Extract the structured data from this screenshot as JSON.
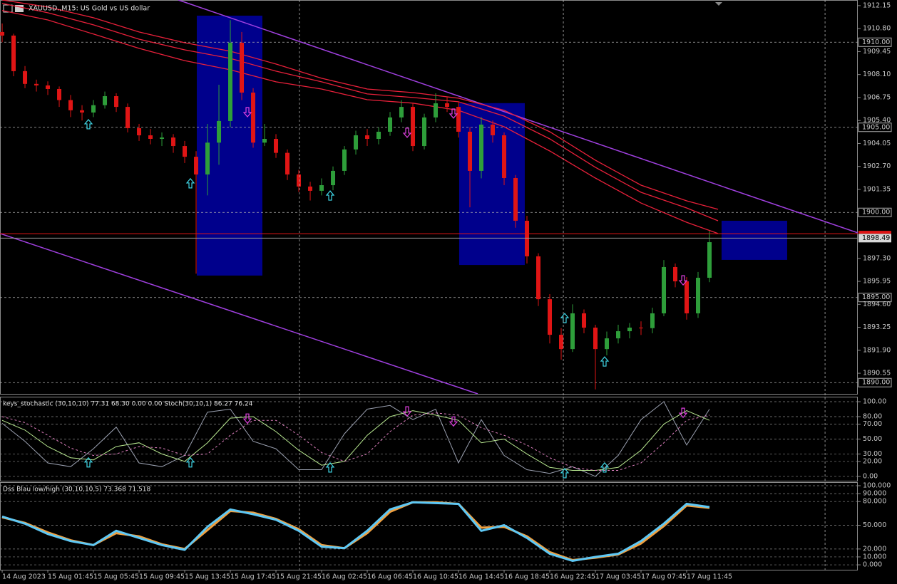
{
  "chart_data": [
    {
      "type": "candlestick",
      "title": "XAUUSD.,M15:  US Gold vs US dollar",
      "up_color": "#2e9e3a",
      "down_color": "#e01515",
      "x": [
        0,
        1,
        2,
        3,
        4,
        5,
        6,
        7,
        8,
        9,
        10,
        11,
        12,
        13,
        14,
        15,
        16,
        17,
        18,
        19,
        20,
        21,
        22,
        23,
        24,
        25,
        26,
        27,
        28,
        29,
        30,
        31,
        32,
        33,
        34,
        35,
        36,
        37,
        38,
        39,
        40,
        41,
        42,
        43,
        44,
        45,
        46,
        47,
        48,
        49,
        50,
        51,
        52,
        53,
        54,
        55,
        56,
        57,
        58,
        59,
        60,
        61,
        62
      ],
      "open": [
        1910.6,
        1910.39,
        1908.3,
        1907.55,
        1907.46,
        1907.25,
        1906.6,
        1906.0,
        1905.87,
        1906.3,
        1906.83,
        1906.2,
        1904.95,
        1904.53,
        1904.32,
        1904.4,
        1903.9,
        1903.27,
        1902.23,
        1904.1,
        1905.37,
        1909.97,
        1907.04,
        1904.1,
        1904.32,
        1903.5,
        1902.23,
        1901.52,
        1901.27,
        1901.6,
        1902.44,
        1903.7,
        1904.53,
        1904.32,
        1904.74,
        1905.58,
        1906.2,
        1903.9,
        1905.58,
        1906.41,
        1906.2,
        1904.74,
        1902.44,
        1905.16,
        1904.53,
        1902.02,
        1899.51,
        1897.42,
        1894.9,
        1892.81,
        1891.97,
        1894.07,
        1893.23,
        1891.97,
        1892.6,
        1893.02,
        1893.23,
        1893.2,
        1894.07,
        1896.79,
        1895.95,
        1894.07,
        1896.16
      ],
      "high": [
        1911.1,
        1910.5,
        1908.6,
        1907.8,
        1907.7,
        1907.4,
        1906.9,
        1906.3,
        1906.6,
        1907.1,
        1907.0,
        1906.4,
        1905.2,
        1904.9,
        1904.7,
        1904.6,
        1904.2,
        1903.6,
        1905.2,
        1907.5,
        1911.3,
        1910.6,
        1907.3,
        1905.2,
        1904.6,
        1903.7,
        1902.5,
        1901.8,
        1902.0,
        1902.7,
        1903.9,
        1904.8,
        1904.9,
        1905.0,
        1905.9,
        1906.6,
        1906.4,
        1905.8,
        1907.0,
        1906.8,
        1906.5,
        1905.0,
        1905.6,
        1905.4,
        1904.7,
        1902.2,
        1899.8,
        1897.6,
        1895.2,
        1893.2,
        1894.6,
        1894.3,
        1893.4,
        1893.0,
        1893.4,
        1893.5,
        1893.6,
        1894.4,
        1897.2,
        1897.0,
        1896.2,
        1896.5,
        1898.9
      ],
      "low": [
        1910.0,
        1908.0,
        1907.3,
        1907.1,
        1906.9,
        1906.2,
        1905.6,
        1905.4,
        1905.6,
        1906.1,
        1905.9,
        1904.7,
        1904.2,
        1904.0,
        1903.9,
        1903.5,
        1902.9,
        1896.4,
        1901.0,
        1902.8,
        1905.0,
        1906.6,
        1903.8,
        1903.9,
        1903.2,
        1901.9,
        1901.2,
        1900.7,
        1901.0,
        1901.3,
        1902.2,
        1903.4,
        1903.9,
        1904.0,
        1904.5,
        1905.3,
        1903.6,
        1903.7,
        1905.3,
        1905.9,
        1904.4,
        1900.3,
        1902.0,
        1904.1,
        1901.6,
        1899.1,
        1897.0,
        1894.5,
        1892.3,
        1891.35,
        1891.8,
        1892.9,
        1889.6,
        1891.6,
        1892.3,
        1892.6,
        1892.8,
        1892.9,
        1893.9,
        1895.6,
        1893.7,
        1893.8,
        1895.9
      ],
      "close": [
        1910.39,
        1908.3,
        1907.55,
        1907.46,
        1907.25,
        1906.6,
        1906.0,
        1905.87,
        1906.3,
        1906.83,
        1906.2,
        1904.95,
        1904.53,
        1904.32,
        1904.4,
        1903.9,
        1903.27,
        1902.23,
        1904.1,
        1905.37,
        1909.97,
        1907.04,
        1904.1,
        1904.32,
        1903.5,
        1902.23,
        1901.52,
        1901.27,
        1901.6,
        1902.44,
        1903.7,
        1904.53,
        1904.32,
        1904.74,
        1905.58,
        1906.2,
        1903.9,
        1905.58,
        1906.41,
        1906.2,
        1904.74,
        1902.44,
        1905.16,
        1904.53,
        1902.02,
        1899.51,
        1897.42,
        1894.9,
        1892.81,
        1891.97,
        1894.07,
        1893.23,
        1891.97,
        1892.6,
        1893.02,
        1893.23,
        1893.2,
        1894.07,
        1896.79,
        1895.95,
        1894.07,
        1896.16,
        1898.25
      ],
      "xlim": [
        -0.19,
        75
      ],
      "xticks": [
        {
          "value": 0,
          "label": "14 Aug 2023"
        },
        {
          "value": 4,
          "label": "15 Aug 01:45"
        },
        {
          "value": 8,
          "label": "15 Aug 05:45"
        },
        {
          "value": 12,
          "label": "15 Aug 09:45"
        },
        {
          "value": 16,
          "label": "15 Aug 13:45"
        },
        {
          "value": 20,
          "label": "15 Aug 17:45"
        },
        {
          "value": 24,
          "label": "15 Aug 21:45"
        },
        {
          "value": 28,
          "label": "16 Aug 02:45"
        },
        {
          "value": 32,
          "label": "16 Aug 06:45"
        },
        {
          "value": 36,
          "label": "16 Aug 10:45"
        },
        {
          "value": 40,
          "label": "16 Aug 14:45"
        },
        {
          "value": 44,
          "label": "16 Aug 18:45"
        },
        {
          "value": 48,
          "label": "16 Aug 22:45"
        },
        {
          "value": 52,
          "label": "17 Aug 03:45"
        },
        {
          "value": 56,
          "label": "17 Aug 07:45"
        },
        {
          "value": 60,
          "label": "17 Aug 11:45"
        }
      ],
      "xgrid": [
        26.06,
        49.19,
        72.13
      ],
      "ylim": [
        1889.34,
        1912.48
      ],
      "yticks": [
        1912.15,
        {
          "value": 1910.8,
          "label": "1910.80"
        },
        1909.45,
        {
          "value": 1908.1,
          "label": "1908.10"
        },
        1906.75,
        {
          "value": 1905.4,
          "label": "1905.40"
        },
        1904.05,
        {
          "value": 1902.7,
          "label": "1902.70"
        },
        1901.35,
        {
          "value": 1897.3,
          "label": "1897.30"
        },
        1895.95,
        {
          "value": 1894.6,
          "label": "1894.60"
        },
        1893.25,
        {
          "value": 1891.9,
          "label": "1891.90"
        },
        1890.55
      ],
      "levels": [
        {
          "value": 1910,
          "label": "1910.00"
        },
        {
          "value": 1905,
          "label": "1905.00"
        },
        {
          "value": 1900,
          "label": "1900.00"
        },
        {
          "value": 1895,
          "label": "1895.00"
        },
        {
          "value": 1890,
          "label": "1890.00"
        }
      ],
      "bid": {
        "value": 1898.49,
        "label": "1898.49"
      },
      "ask": 1898.75,
      "series": [
        {
          "color": "#e8203a",
          "x": [
            0,
            4,
            8,
            12,
            16,
            20,
            24,
            28,
            32,
            36,
            40,
            44,
            48,
            52,
            56,
            60,
            62.75
          ],
          "values": [
            1912.48,
            1912.07,
            1911.44,
            1910.6,
            1909.97,
            1909.47,
            1908.72,
            1907.88,
            1907.25,
            1907.04,
            1906.71,
            1906.0,
            1904.74,
            1903.07,
            1901.6,
            1900.68,
            1900.18
          ]
        },
        {
          "color": "#e8203a",
          "x": [
            0,
            4,
            8,
            12,
            16,
            20,
            24,
            28,
            32,
            36,
            40,
            44,
            48,
            52,
            56,
            60,
            62.75
          ],
          "values": [
            1912.28,
            1911.73,
            1911.02,
            1910.18,
            1909.55,
            1909.05,
            1908.3,
            1907.67,
            1906.96,
            1906.75,
            1906.5,
            1905.66,
            1904.32,
            1902.65,
            1901.18,
            1900.26,
            1899.51
          ]
        },
        {
          "color": "#e8203a",
          "x": [
            0,
            4,
            8,
            12,
            16,
            20,
            24,
            28,
            32,
            36,
            40,
            44,
            48,
            52,
            56,
            60,
            62.75
          ],
          "values": [
            1911.86,
            1911.31,
            1910.48,
            1909.64,
            1908.92,
            1908.38,
            1907.67,
            1907.25,
            1906.62,
            1906.42,
            1906.0,
            1905.03,
            1903.61,
            1902.02,
            1900.55,
            1899.42,
            1898.76
          ]
        }
      ],
      "trend_color": "#a040e0",
      "trendlines": [
        {
          "x": [
            15.44,
            75
          ],
          "y": [
            1912.48,
            1898.8
          ]
        },
        {
          "x": [
            -0.19,
            41.69
          ],
          "y": [
            1898.76,
            1889.34
          ]
        }
      ],
      "box_color": "#00008c",
      "boxes": [
        {
          "x": [
            17.06,
            22.81
          ],
          "y": [
            1911.56,
            1896.29
          ]
        },
        {
          "x": [
            40.06,
            45.81
          ],
          "y": [
            1906.42,
            1896.91
          ]
        },
        {
          "x": [
            63.06,
            68.81
          ],
          "y": [
            1899.51,
            1897.21
          ]
        }
      ],
      "signals_up": {
        "x": [
          7.56,
          16.5,
          28.75,
          49.31,
          52.81
        ],
        "y": [
          1905.16,
          1901.69,
          1900.97,
          1893.77,
          1891.22
        ]
      },
      "signals_down": {
        "x": [
          21.5,
          35.5,
          39.56,
          59.69
        ],
        "y": [
          1905.91,
          1904.7,
          1905.83,
          1896.03
        ]
      }
    },
    {
      "type": "line",
      "title": "keys_stochastic (30,10,10) 77.31 68.30 0.00 0.00 Stoch(30,10,1) 86.27 76.24",
      "ylim": [
        -5.8,
        106.7
      ],
      "yticks": [
        {
          "value": 100,
          "label": "100.00"
        },
        {
          "value": 80,
          "label": "80.00"
        },
        {
          "value": 70,
          "label": "70.00"
        },
        {
          "value": 50,
          "label": "50.00"
        },
        {
          "value": 30,
          "label": "30.00"
        },
        {
          "value": 20,
          "label": "20.00"
        },
        {
          "value": 0,
          "label": "0.00"
        }
      ],
      "series": [
        {
          "color": "#9aa0b0",
          "dash": false,
          "x": [
            0,
            2,
            4,
            6,
            8,
            10,
            12,
            14,
            16,
            18,
            20,
            22,
            24,
            26,
            28,
            30,
            32,
            34,
            36,
            38,
            40,
            42,
            44,
            46,
            48,
            50,
            52,
            54,
            56,
            58,
            60,
            62
          ],
          "values": [
            71,
            47,
            18,
            13,
            37,
            66,
            18,
            13,
            28,
            86,
            90,
            47,
            37,
            9,
            9,
            57,
            90,
            95,
            76,
            90,
            18,
            76,
            28,
            9,
            4,
            13,
            0,
            28,
            76,
            100,
            42,
            90
          ]
        },
        {
          "color": "#b8e890",
          "dash": false,
          "x": [
            0,
            2,
            4,
            6,
            8,
            10,
            12,
            14,
            16,
            18,
            20,
            22,
            24,
            26,
            28,
            30,
            32,
            34,
            36,
            38,
            40,
            42,
            44,
            46,
            48,
            50,
            52,
            54,
            56,
            58,
            60,
            62
          ],
          "values": [
            75,
            62,
            40,
            25,
            22,
            40,
            45,
            30,
            20,
            45,
            78,
            80,
            60,
            35,
            15,
            20,
            55,
            80,
            88,
            82,
            75,
            45,
            50,
            30,
            12,
            8,
            8,
            12,
            35,
            70,
            88,
            75
          ]
        },
        {
          "color": "#e080c0",
          "dash": true,
          "x": [
            0,
            2,
            4,
            6,
            8,
            10,
            12,
            14,
            16,
            18,
            20,
            22,
            24,
            26,
            28,
            30,
            32,
            34,
            36,
            38,
            40,
            42,
            44,
            46,
            48,
            50,
            52,
            54,
            56,
            58,
            60,
            62
          ],
          "values": [
            80,
            72,
            55,
            38,
            28,
            30,
            40,
            38,
            28,
            30,
            55,
            75,
            75,
            55,
            32,
            20,
            30,
            60,
            82,
            85,
            82,
            65,
            55,
            42,
            25,
            12,
            8,
            8,
            18,
            45,
            75,
            82
          ]
        }
      ],
      "signals_up": {
        "x": [
          7.56,
          16.5,
          28.75,
          49.31,
          52.81
        ],
        "y": [
          18.3,
          18.3,
          11.5,
          3.8,
          11.5
        ]
      },
      "signals_down": {
        "x": [
          21.5,
          35.5,
          39.56,
          59.69
        ],
        "y": [
          77.9,
          87.5,
          74,
          85.6
        ]
      }
    },
    {
      "type": "line",
      "title": "Dss Blau low/high (30,10,10,5) 73.368 71.518",
      "ylim": [
        -6.25,
        104.5
      ],
      "yticks": [
        {
          "value": 100,
          "label": "100.000"
        },
        {
          "value": 90,
          "label": "90.000"
        },
        {
          "value": 80,
          "label": "80.000"
        },
        {
          "value": 50,
          "label": "50.000"
        },
        {
          "value": 20,
          "label": "20.000"
        },
        {
          "value": 10,
          "label": "10.000"
        },
        {
          "value": 0,
          "label": "0.000"
        }
      ],
      "series": [
        {
          "color": "#f0a040",
          "dash": false,
          "width": 3,
          "x": [
            0,
            2,
            4,
            6,
            8,
            10,
            12,
            14,
            16,
            18,
            20,
            22,
            24,
            26,
            28,
            30,
            32,
            34,
            36,
            38,
            40,
            42,
            44,
            46,
            48,
            50,
            52,
            54,
            56,
            58,
            60,
            62
          ],
          "values": [
            60,
            53,
            41,
            31,
            25,
            40,
            36,
            26,
            20,
            44,
            68,
            66,
            58,
            45,
            25,
            21,
            40,
            67,
            79,
            79,
            77,
            47,
            48,
            36,
            16,
            6,
            9,
            13,
            27,
            49,
            75,
            72
          ]
        },
        {
          "color": "#5ec8f5",
          "dash": false,
          "width": 3,
          "x": [
            0,
            2,
            4,
            6,
            8,
            10,
            12,
            14,
            16,
            18,
            20,
            22,
            24,
            26,
            28,
            30,
            32,
            34,
            36,
            38,
            40,
            42,
            44,
            46,
            48,
            50,
            52,
            54,
            56,
            58,
            60,
            62
          ],
          "values": [
            61,
            52,
            39,
            30,
            25,
            43,
            34,
            25,
            19,
            48,
            70,
            64,
            57,
            43,
            23,
            21,
            43,
            70,
            79,
            78,
            77,
            43,
            50,
            34,
            14,
            5,
            10,
            14,
            30,
            52,
            77,
            73
          ]
        }
      ]
    }
  ]
}
